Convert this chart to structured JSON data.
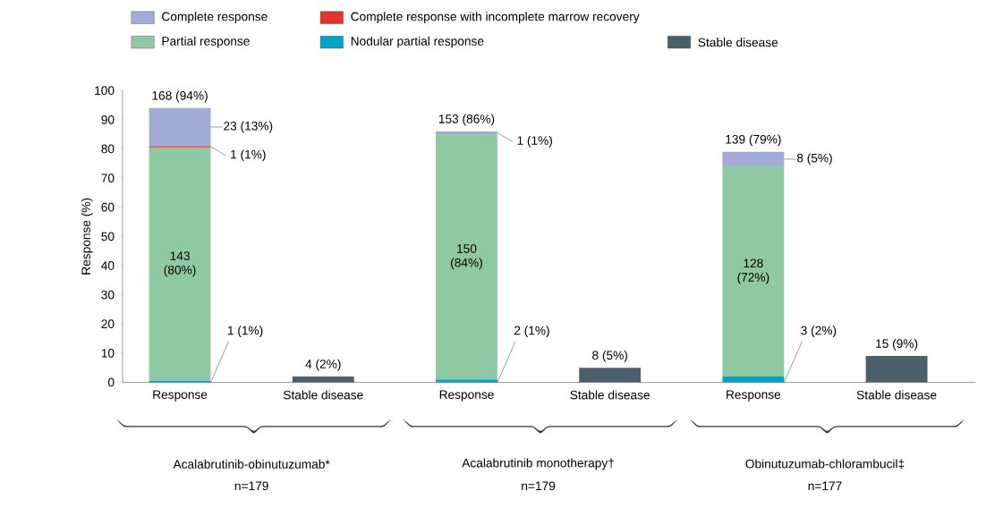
{
  "chart_data": {
    "type": "bar",
    "stacked": true,
    "ylabel": "Response (%)",
    "legend": "top left",
    "categories": [
      "Response",
      "Stable disease",
      "Response",
      "Stable disease",
      "Response",
      "Stable disease"
    ],
    "ylim": [
      0,
      100
    ],
    "yticks": [
      0,
      10,
      20,
      30,
      40,
      50,
      60,
      70,
      80,
      90,
      100
    ],
    "series": [
      {
        "name": "Nodular partial response",
        "color": "#00a3c4",
        "values": [
          0.5,
          null,
          1,
          null,
          2,
          null
        ],
        "value_labels": [
          "1 (1%)",
          null,
          "2 (1%)",
          null,
          "3 (2%)",
          null
        ]
      },
      {
        "name": "Partial response",
        "color": "#8fc9a3",
        "values": [
          80,
          null,
          84,
          null,
          72,
          null
        ],
        "value_labels": [
          "143 (80%)",
          null,
          "150 (84%)",
          null,
          "128 (72%)",
          null
        ]
      },
      {
        "name": "Complete response with incomplete marrow recovery",
        "color": "#e8322c",
        "values": [
          0.5,
          null,
          null,
          null,
          null,
          null
        ],
        "value_labels": [
          "1 (1%)",
          null,
          null,
          null,
          null,
          null
        ]
      },
      {
        "name": "Complete response",
        "color": "#a3acd9",
        "values": [
          13,
          null,
          1,
          null,
          5,
          null
        ],
        "value_labels": [
          "23 (13%)",
          null,
          "1 (1%)",
          null,
          "8 (5%)",
          null
        ]
      },
      {
        "name": "Stable disease",
        "color": "#4a5f6b",
        "values": [
          null,
          2,
          null,
          5,
          null,
          9
        ],
        "value_labels": [
          null,
          "4 (2%)",
          null,
          "8 (5%)",
          null,
          "15 (9%)"
        ]
      }
    ],
    "totals": [
      "168 (94%)",
      null,
      "153 (86%)",
      null,
      "139 (79%)",
      null
    ],
    "annotations": [
      "Acalabrutinib-obinutuzumab*",
      "n=179",
      "Acalabrutinib monotherapy†",
      "n=179",
      "Obinutuzumab-chlorambucil‡",
      "n=177"
    ]
  }
}
